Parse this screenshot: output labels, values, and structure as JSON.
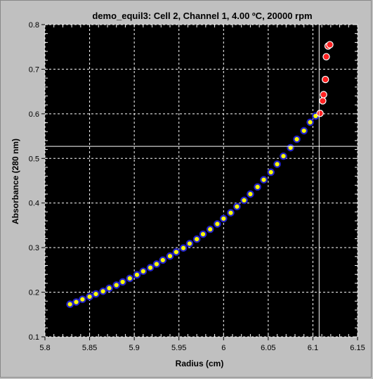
{
  "chart_data": {
    "type": "scatter",
    "title": "demo_equil3: Cell 2, Channel 1, 4.00 ºC, 20000 rpm",
    "xlabel": "Radius (cm)",
    "ylabel": "Absorbance (280 nm)",
    "xlim": [
      5.8,
      6.15
    ],
    "ylim": [
      0.1,
      0.8
    ],
    "x_ticks": [
      "5.8",
      "5.85",
      "5.9",
      "5.95",
      "6",
      "6.05",
      "6.1",
      "6.15"
    ],
    "y_ticks": [
      "0.1",
      "0.2",
      "0.3",
      "0.4",
      "0.5",
      "0.6",
      "0.7",
      "0.8"
    ],
    "grid": true,
    "background": "#000000",
    "grid_color": "#ffffff",
    "crosshair": {
      "x": 6.107,
      "y": 0.527
    },
    "series": [
      {
        "marker_fill": "#ffff00",
        "marker_edge": "#2222cc",
        "points": [
          [
            5.828,
            0.173
          ],
          [
            5.835,
            0.178
          ],
          [
            5.842,
            0.184
          ],
          [
            5.85,
            0.19
          ],
          [
            5.857,
            0.196
          ],
          [
            5.865,
            0.202
          ],
          [
            5.872,
            0.209
          ],
          [
            5.88,
            0.216
          ],
          [
            5.887,
            0.223
          ],
          [
            5.895,
            0.231
          ],
          [
            5.903,
            0.239
          ],
          [
            5.91,
            0.247
          ],
          [
            5.918,
            0.255
          ],
          [
            5.925,
            0.263
          ],
          [
            5.932,
            0.272
          ],
          [
            5.94,
            0.281
          ],
          [
            5.947,
            0.29
          ],
          [
            5.955,
            0.299
          ],
          [
            5.962,
            0.309
          ],
          [
            5.97,
            0.319
          ],
          [
            5.977,
            0.33
          ],
          [
            5.985,
            0.341
          ],
          [
            5.993,
            0.353
          ],
          [
            6.0,
            0.365
          ],
          [
            6.008,
            0.378
          ],
          [
            6.015,
            0.392
          ],
          [
            6.023,
            0.406
          ],
          [
            6.03,
            0.42
          ],
          [
            6.038,
            0.436
          ],
          [
            6.045,
            0.452
          ],
          [
            6.053,
            0.469
          ],
          [
            6.06,
            0.487
          ],
          [
            6.067,
            0.505
          ],
          [
            6.075,
            0.524
          ],
          [
            6.082,
            0.543
          ],
          [
            6.09,
            0.562
          ],
          [
            6.097,
            0.581
          ],
          [
            6.103,
            0.595
          ]
        ]
      },
      {
        "marker_fill": "#ff2020",
        "marker_edge": "#ffffff",
        "points": [
          [
            6.108,
            0.601
          ],
          [
            6.111,
            0.629
          ],
          [
            6.112,
            0.643
          ],
          [
            6.114,
            0.677
          ],
          [
            6.115,
            0.728
          ],
          [
            6.117,
            0.752
          ],
          [
            6.119,
            0.755
          ]
        ]
      }
    ]
  }
}
